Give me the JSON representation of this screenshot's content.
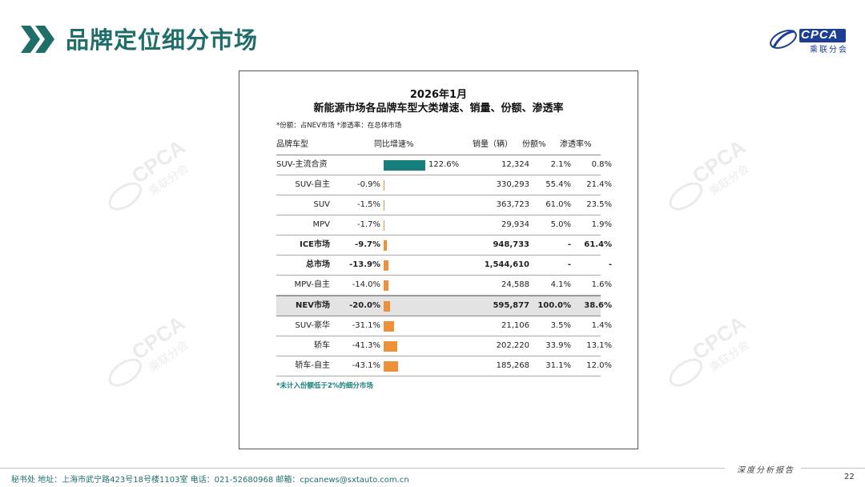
{
  "page": {
    "title": "品牌定位细分市场",
    "logo_text": "CPCA",
    "logo_subtext": "乘联分会",
    "watermark_text": "CPCA",
    "watermark_subtext": "乘联分会",
    "page_number": "22",
    "footer_brand": "深度分析报告",
    "footer_contact": "秘书处   地址：上海市武宁路423号18号楼1103室  电话：021-52680968   邮箱：cpcanews@sxtauto.com.cn"
  },
  "colors": {
    "title": "#1f6e6a",
    "bar_positive": "#177f7b",
    "bar_negative": "#ee8f3a",
    "highlight_row": "#e3e3e3",
    "logo": "#1c3f94"
  },
  "panel": {
    "title_line1": "2026年1月",
    "title_line2": "新能源市场各品牌车型大类增速、销量、份额、渗透率",
    "note": "*份额：占NEV市场   *渗透率：在总体市场",
    "footnote": "*未计入份额低于2%的细分市场",
    "headers": {
      "name": "品牌车型",
      "growth": "同比增速%",
      "volume": "销量（辆）",
      "share": "份额%",
      "penetration": "渗透率%"
    }
  },
  "chart_data": {
    "type": "table",
    "columns": [
      "品牌车型",
      "同比增速%",
      "销量（辆）",
      "份额%",
      "渗透率%"
    ],
    "rows": [
      {
        "name": "SUV-主流合资",
        "growth": 122.6,
        "growth_label": "122.6%",
        "volume": "12,324",
        "share": "2.1%",
        "penetration": "0.8%",
        "bold": false,
        "highlight": false,
        "align": "left"
      },
      {
        "name": "SUV-自主",
        "growth": -0.9,
        "growth_label": "-0.9%",
        "volume": "330,293",
        "share": "55.4%",
        "penetration": "21.4%",
        "bold": false,
        "highlight": false
      },
      {
        "name": "SUV",
        "growth": -1.5,
        "growth_label": "-1.5%",
        "volume": "363,723",
        "share": "61.0%",
        "penetration": "23.5%",
        "bold": false,
        "highlight": false
      },
      {
        "name": "MPV",
        "growth": -1.7,
        "growth_label": "-1.7%",
        "volume": "29,934",
        "share": "5.0%",
        "penetration": "1.9%",
        "bold": false,
        "highlight": false
      },
      {
        "name": "ICE市场",
        "growth": -9.7,
        "growth_label": "-9.7%",
        "volume": "948,733",
        "share": "-",
        "penetration": "61.4%",
        "bold": true,
        "highlight": false
      },
      {
        "name": "总市场",
        "growth": -13.9,
        "growth_label": "-13.9%",
        "volume": "1,544,610",
        "share": "-",
        "penetration": "-",
        "bold": true,
        "highlight": false
      },
      {
        "name": "MPV-自主",
        "growth": -14.0,
        "growth_label": "-14.0%",
        "volume": "24,588",
        "share": "4.1%",
        "penetration": "1.6%",
        "bold": false,
        "highlight": false
      },
      {
        "name": "NEV市场",
        "growth": -20.0,
        "growth_label": "-20.0%",
        "volume": "595,877",
        "share": "100.0%",
        "penetration": "38.6%",
        "bold": true,
        "highlight": true
      },
      {
        "name": "SUV-豪华",
        "growth": -31.1,
        "growth_label": "-31.1%",
        "volume": "21,106",
        "share": "3.5%",
        "penetration": "1.4%",
        "bold": false,
        "highlight": false
      },
      {
        "name": "轿车",
        "growth": -41.3,
        "growth_label": "-41.3%",
        "volume": "202,220",
        "share": "33.9%",
        "penetration": "13.1%",
        "bold": false,
        "highlight": false
      },
      {
        "name": "轿车-自主",
        "growth": -43.1,
        "growth_label": "-43.1%",
        "volume": "185,268",
        "share": "31.1%",
        "penetration": "12.0%",
        "bold": false,
        "highlight": false
      }
    ]
  }
}
